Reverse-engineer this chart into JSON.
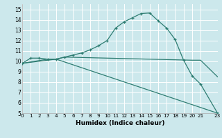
{
  "xlabel": "Humidex (Indice chaleur)",
  "bg_color": "#cce8ec",
  "line_color": "#2e7d72",
  "grid_color": "#ffffff",
  "xlim": [
    0,
    23
  ],
  "ylim": [
    5,
    15.5
  ],
  "xticks": [
    0,
    1,
    2,
    3,
    4,
    5,
    6,
    7,
    8,
    9,
    10,
    11,
    12,
    13,
    14,
    15,
    16,
    17,
    18,
    19,
    20,
    21,
    23
  ],
  "yticks": [
    5,
    6,
    7,
    8,
    9,
    10,
    11,
    12,
    13,
    14,
    15
  ],
  "line1_x": [
    0,
    1,
    2,
    3,
    4,
    5,
    6,
    7,
    8,
    9,
    10,
    11,
    12,
    13,
    14,
    15,
    16,
    17,
    18,
    19,
    20,
    21,
    23
  ],
  "line1_y": [
    9.8,
    10.3,
    10.3,
    10.2,
    10.2,
    10.4,
    10.6,
    10.8,
    11.1,
    11.5,
    12.0,
    13.2,
    13.8,
    14.2,
    14.6,
    14.65,
    13.9,
    13.2,
    12.1,
    10.1,
    8.6,
    7.8,
    5.0
  ],
  "line2_x": [
    0,
    3,
    4,
    5,
    20,
    21,
    23
  ],
  "line2_y": [
    9.8,
    10.2,
    10.2,
    10.4,
    10.1,
    10.1,
    8.5
  ],
  "line3_x": [
    0,
    4,
    23
  ],
  "line3_y": [
    9.8,
    10.2,
    5.0
  ],
  "marker_size": 3.5,
  "lw": 0.9
}
